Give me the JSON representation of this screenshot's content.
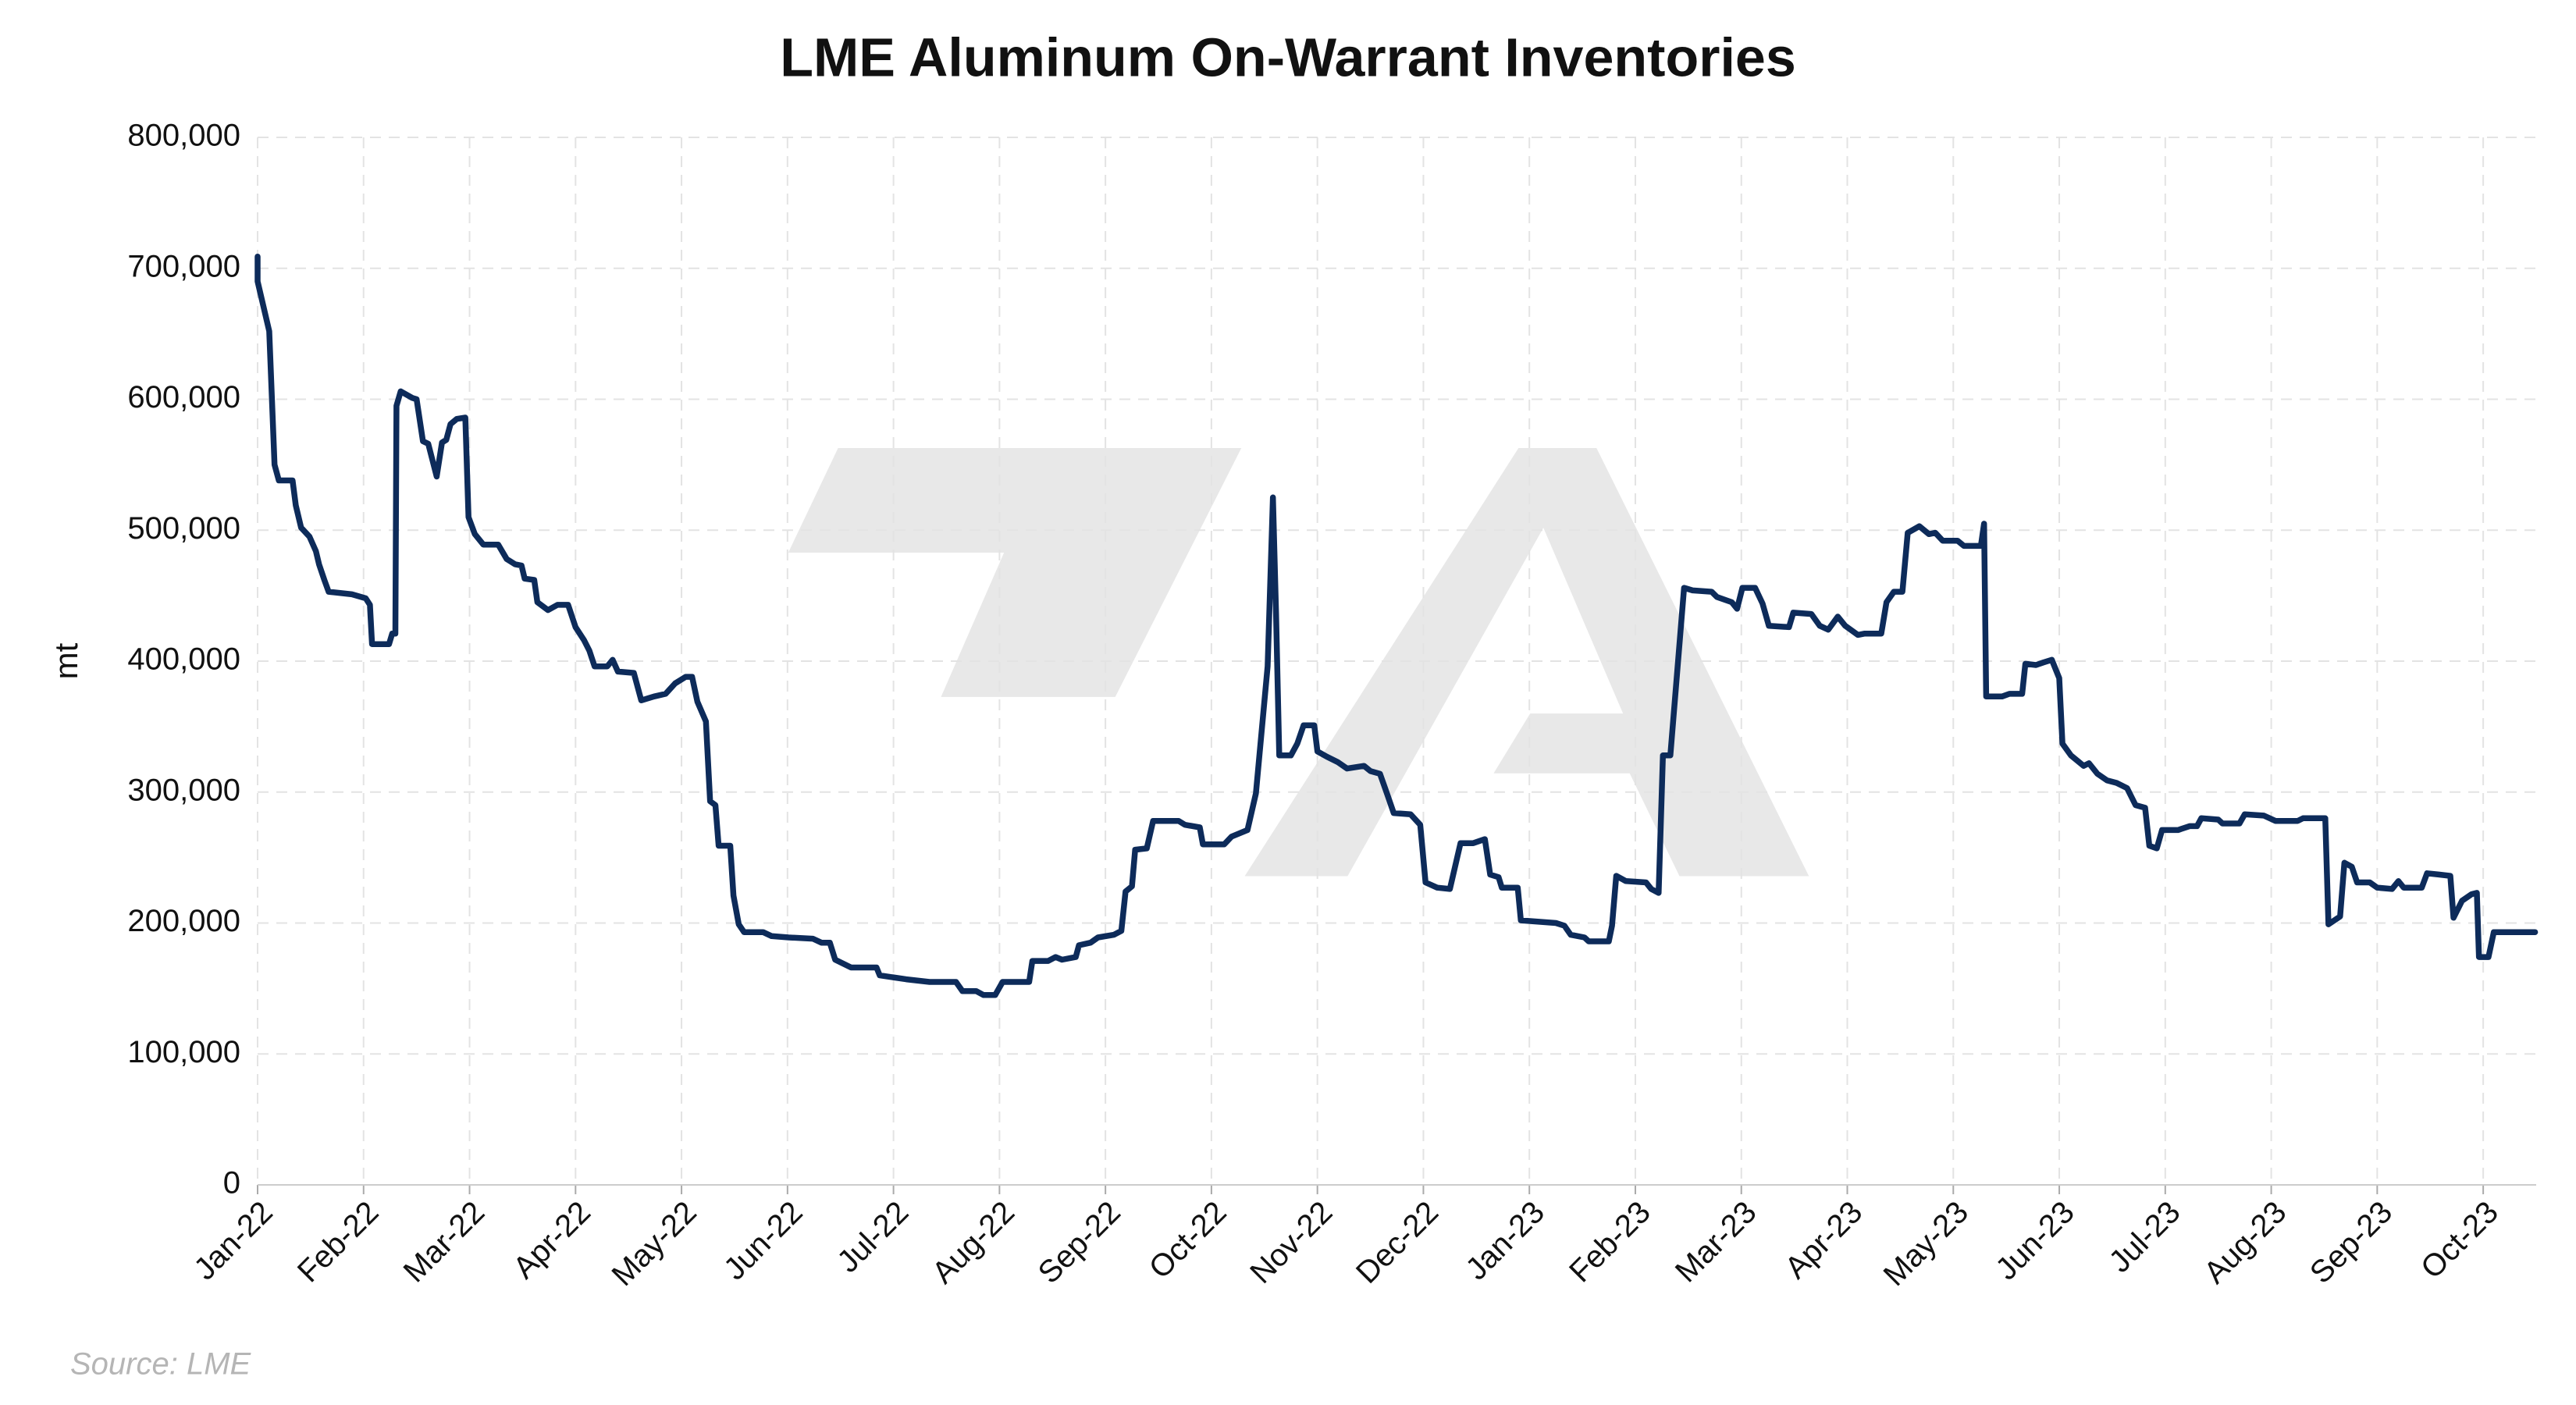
{
  "chart_data": {
    "type": "line",
    "title": "LME Aluminum On-Warrant Inventories",
    "y_label": "mt",
    "source": "Source: LME",
    "color": "#0d2b5a",
    "grid": true,
    "xlim": [
      0,
      21.5
    ],
    "ylim": [
      0,
      800000
    ],
    "yticks": [
      0,
      {
        "value": 100000,
        "label": "100,000"
      },
      {
        "value": 200000,
        "label": "200,000"
      },
      {
        "value": 300000,
        "label": "300,000"
      },
      {
        "value": 400000,
        "label": "400,000"
      },
      {
        "value": 500000,
        "label": "500,000"
      },
      {
        "value": 600000,
        "label": "600,000"
      },
      {
        "value": 700000,
        "label": "700,000"
      },
      {
        "value": 800000,
        "label": "800,000"
      }
    ],
    "xticks": [
      {
        "value": 0,
        "label": "Jan-22"
      },
      {
        "value": 1,
        "label": "Feb-22"
      },
      {
        "value": 2,
        "label": "Mar-22"
      },
      {
        "value": 3,
        "label": "Apr-22"
      },
      {
        "value": 4,
        "label": "May-22"
      },
      {
        "value": 5,
        "label": "Jun-22"
      },
      {
        "value": 6,
        "label": "Jul-22"
      },
      {
        "value": 7,
        "label": "Aug-22"
      },
      {
        "value": 8,
        "label": "Sep-22"
      },
      {
        "value": 9,
        "label": "Oct-22"
      },
      {
        "value": 10,
        "label": "Nov-22"
      },
      {
        "value": 11,
        "label": "Dec-22"
      },
      {
        "value": 12,
        "label": "Jan-23"
      },
      {
        "value": 13,
        "label": "Feb-23"
      },
      {
        "value": 14,
        "label": "Mar-23"
      },
      {
        "value": 15,
        "label": "Apr-23"
      },
      {
        "value": 16,
        "label": "May-23"
      },
      {
        "value": 17,
        "label": "Jun-23"
      },
      {
        "value": 18,
        "label": "Jul-23"
      },
      {
        "value": 19,
        "label": "Aug-23"
      },
      {
        "value": 20,
        "label": "Sep-23"
      },
      {
        "value": 21,
        "label": "Oct-23"
      }
    ],
    "x": [
      0,
      0,
      0.11,
      0.16,
      0.2,
      0.33,
      0.36,
      0.41,
      0.49,
      0.55,
      0.58,
      0.63,
      0.67,
      0.89,
      1.02,
      1.06,
      1.08,
      1.24,
      1.27,
      1.3,
      1.31,
      1.35,
      1.46,
      1.5,
      1.56,
      1.61,
      1.69,
      1.74,
      1.78,
      1.82,
      1.88,
      1.96,
      1.99,
      2.05,
      2.13,
      2.27,
      2.35,
      2.43,
      2.49,
      2.52,
      2.61,
      2.64,
      2.74,
      2.83,
      2.93,
      3.0,
      3.08,
      3.13,
      3.18,
      3.3,
      3.35,
      3.4,
      3.55,
      3.62,
      3.74,
      3.85,
      3.94,
      4.04,
      4.1,
      4.15,
      4.23,
      4.27,
      4.32,
      4.35,
      4.46,
      4.49,
      4.54,
      4.59,
      4.77,
      4.85,
      5.01,
      5.24,
      5.32,
      5.4,
      5.45,
      5.6,
      5.84,
      5.87,
      6.12,
      6.34,
      6.59,
      6.65,
      6.78,
      6.85,
      6.96,
      7.03,
      7.28,
      7.31,
      7.46,
      7.53,
      7.59,
      7.72,
      7.75,
      7.86,
      7.93,
      8.08,
      8.15,
      8.19,
      8.25,
      8.28,
      8.39,
      8.45,
      8.69,
      8.75,
      8.89,
      8.92,
      9.12,
      9.19,
      9.34,
      9.42,
      9.53,
      9.58,
      9.61,
      9.64,
      9.75,
      9.81,
      9.87,
      9.97,
      10.0,
      10.09,
      10.19,
      10.28,
      10.44,
      10.5,
      10.59,
      10.66,
      10.72,
      10.88,
      10.97,
      11.02,
      11.13,
      11.25,
      11.35,
      11.47,
      11.58,
      11.63,
      11.71,
      11.74,
      11.89,
      11.92,
      12.25,
      12.33,
      12.39,
      12.52,
      12.56,
      12.75,
      12.78,
      12.82,
      12.91,
      13.1,
      13.15,
      13.22,
      13.26,
      13.33,
      13.46,
      13.54,
      13.72,
      13.77,
      13.91,
      13.96,
      14.01,
      14.13,
      14.2,
      14.26,
      14.45,
      14.49,
      14.66,
      14.74,
      14.82,
      14.91,
      14.98,
      15.1,
      15.16,
      15.32,
      15.37,
      15.44,
      15.52,
      15.57,
      15.68,
      15.77,
      15.83,
      15.9,
      16.04,
      16.1,
      16.26,
      16.29,
      16.31,
      16.46,
      16.53,
      16.65,
      16.68,
      16.78,
      16.85,
      16.93,
      17.0,
      17.03,
      17.11,
      17.23,
      17.28,
      17.36,
      17.45,
      17.54,
      17.64,
      17.72,
      17.81,
      17.85,
      17.92,
      17.97,
      18.12,
      18.23,
      18.3,
      18.34,
      18.5,
      18.54,
      18.7,
      18.75,
      18.93,
      19.04,
      19.25,
      19.3,
      19.51,
      19.54,
      19.65,
      19.69,
      19.76,
      19.81,
      19.93,
      20.0,
      20.14,
      20.2,
      20.25,
      20.42,
      20.47,
      20.58,
      20.69,
      20.72,
      20.8,
      20.89,
      20.94,
      20.96,
      21.05,
      21.1,
      21.49
    ],
    "values": [
      709000,
      690000,
      652000,
      550000,
      538000,
      538000,
      519000,
      502000,
      495000,
      484000,
      474000,
      462000,
      453000,
      451000,
      448000,
      443000,
      413000,
      413000,
      421000,
      421000,
      595000,
      606000,
      601000,
      600000,
      568000,
      566000,
      541000,
      567000,
      569000,
      581000,
      585000,
      586000,
      510000,
      497000,
      489000,
      489000,
      478000,
      474000,
      473000,
      463000,
      462000,
      445000,
      439000,
      443000,
      443000,
      426000,
      416000,
      408000,
      396000,
      396000,
      401000,
      392000,
      391000,
      370000,
      373000,
      375000,
      383000,
      388000,
      388000,
      369000,
      354000,
      293000,
      290000,
      259000,
      259000,
      221000,
      199000,
      193000,
      193000,
      190000,
      189000,
      188000,
      185000,
      185000,
      172000,
      166000,
      166000,
      160000,
      157000,
      155000,
      155000,
      148000,
      148000,
      145000,
      145000,
      155000,
      155000,
      171000,
      171000,
      174000,
      172000,
      174000,
      183000,
      185000,
      189000,
      191000,
      194000,
      224000,
      228000,
      256000,
      257000,
      278000,
      278000,
      275000,
      273000,
      260000,
      260000,
      266000,
      271000,
      299000,
      396000,
      525000,
      436000,
      328000,
      328000,
      337000,
      351000,
      351000,
      331000,
      327000,
      323000,
      318000,
      320000,
      316000,
      314000,
      298000,
      284000,
      283000,
      275000,
      231000,
      227000,
      226000,
      261000,
      261000,
      264000,
      237000,
      235000,
      227000,
      227000,
      202000,
      200000,
      198000,
      191000,
      189000,
      186000,
      186000,
      198000,
      236000,
      232000,
      231000,
      226000,
      223000,
      328000,
      328000,
      456000,
      454000,
      453000,
      449000,
      445000,
      440000,
      456000,
      456000,
      444000,
      427000,
      426000,
      437000,
      436000,
      427000,
      424000,
      434000,
      427000,
      420000,
      421000,
      421000,
      445000,
      453000,
      453000,
      498000,
      503000,
      497000,
      498000,
      492000,
      492000,
      488000,
      488000,
      505000,
      373000,
      373000,
      375000,
      375000,
      398000,
      397000,
      399000,
      401000,
      387000,
      337000,
      328000,
      320000,
      322000,
      314000,
      309000,
      307000,
      303000,
      290000,
      288000,
      259000,
      257000,
      271000,
      271000,
      274000,
      274000,
      280000,
      279000,
      276000,
      276000,
      283000,
      282000,
      278000,
      278000,
      280000,
      280000,
      199000,
      205000,
      246000,
      243000,
      231000,
      231000,
      227000,
      226000,
      232000,
      227000,
      227000,
      238000,
      237000,
      236000,
      204000,
      217000,
      222000,
      223000,
      174000,
      174000,
      193000,
      193000
    ]
  }
}
